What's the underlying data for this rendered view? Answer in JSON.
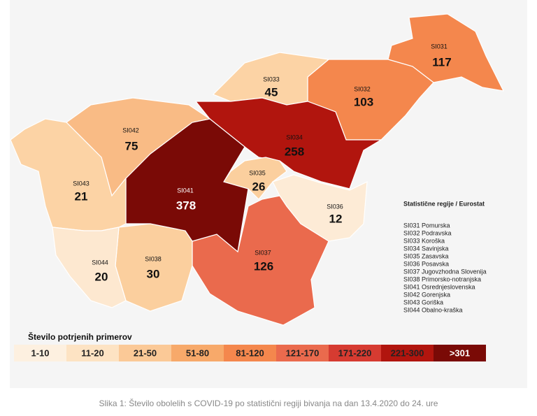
{
  "regions": [
    {
      "code": "SI031",
      "value": 117,
      "color": "#f4874d"
    },
    {
      "code": "SI032",
      "value": 103,
      "color": "#f4874d"
    },
    {
      "code": "SI033",
      "value": 45,
      "color": "#fcd3a5"
    },
    {
      "code": "SI034",
      "value": 258,
      "color": "#b1150e"
    },
    {
      "code": "SI035",
      "value": 26,
      "color": "#fbcf9e"
    },
    {
      "code": "SI036",
      "value": 12,
      "color": "#fdebd6"
    },
    {
      "code": "SI037",
      "value": 126,
      "color": "#ea6a4d"
    },
    {
      "code": "SI038",
      "value": 30,
      "color": "#fbcf9e"
    },
    {
      "code": "SI041",
      "value": 378,
      "color": "#7a0a06"
    },
    {
      "code": "SI042",
      "value": 75,
      "color": "#f9bb85"
    },
    {
      "code": "SI043",
      "value": 21,
      "color": "#fcd3a5"
    },
    {
      "code": "SI044",
      "value": 20,
      "color": "#fde8d0"
    }
  ],
  "legend": {
    "title": "Število potrjenih primerov",
    "items": [
      {
        "label": "1-10",
        "color": "#fdf0e0"
      },
      {
        "label": "11-20",
        "color": "#fde3c3"
      },
      {
        "label": "21-50",
        "color": "#fbc997"
      },
      {
        "label": "51-80",
        "color": "#f7a96a"
      },
      {
        "label": "81-120",
        "color": "#f4874d"
      },
      {
        "label": "121-170",
        "color": "#ea6a4d"
      },
      {
        "label": "171-220",
        "color": "#d63b31"
      },
      {
        "label": "221-300",
        "color": "#b1150e"
      },
      {
        "label": ">301",
        "color": "#7a0a06"
      }
    ]
  },
  "region_list": {
    "title": "Statistične regije / Eurostat",
    "items": [
      "SI031 Pomurska",
      "SI032 Podravska",
      "SI033 Koroška",
      "SI034 Savinjska",
      "SI035 Zasavska",
      "SI036 Posavska",
      "SI037 Jugovzhodna Slovenija",
      "SI038 Primorsko-notranjska",
      "SI041 Osrednjeslovenska",
      "SI042 Gorenjska",
      "SI043 Goriška",
      "SI044 Obalno-kraška"
    ]
  },
  "caption": "Slika 1: Število obolelih s COVID-19 po statistični regiji bivanja na dan 13.4.2020 do 24. ure"
}
